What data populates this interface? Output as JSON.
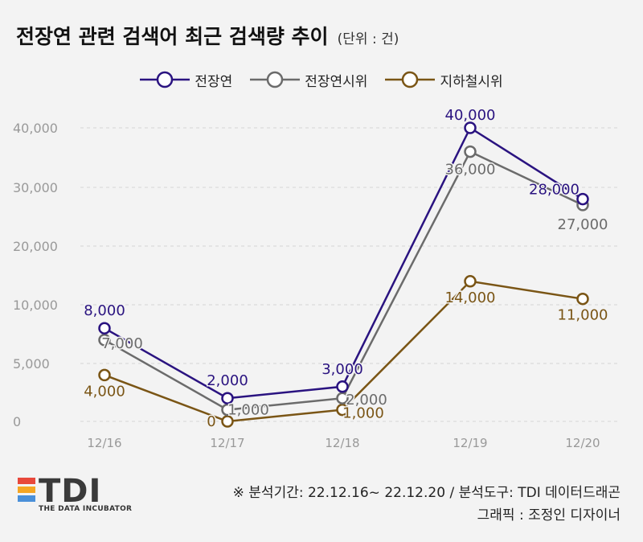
{
  "title": "전장연 관련 검색어 최근 검색량 추이",
  "unit_note": "(단위 : 건)",
  "chart_data": {
    "type": "line",
    "categories": [
      "12/16",
      "12/17",
      "12/18",
      "12/19",
      "12/20"
    ],
    "ylim": [
      0,
      40000
    ],
    "y_ticks": [
      "0",
      "5,000",
      "10,000",
      "20,000",
      "30,000",
      "40,000"
    ],
    "y_tick_values": [
      0,
      5000,
      10000,
      20000,
      30000,
      40000
    ],
    "series": [
      {
        "name": "전장연",
        "values": [
          8000,
          2000,
          3000,
          40000,
          28000
        ],
        "labels": [
          "8,000",
          "2,000",
          "3,000",
          "40,000",
          "28,000"
        ],
        "color": "#2a1380"
      },
      {
        "name": "전장연시위",
        "values": [
          7000,
          1000,
          2000,
          36000,
          27000
        ],
        "labels": [
          "7,000",
          "1,000",
          "2,000",
          "36,000",
          "27,000"
        ],
        "color": "#6b6b6b"
      },
      {
        "name": "지하철시위",
        "values": [
          4000,
          0,
          1000,
          14000,
          11000
        ],
        "labels": [
          "4,000",
          "0",
          "1,000",
          "14,000",
          "11,000"
        ],
        "color": "#7a5515"
      }
    ]
  },
  "footer": {
    "source": "※ 분석기간: 22.12.16~ 22.12.20 / 분석도구: TDI 데이터드래곤",
    "credit": "그래픽 : 조정인 디자이너"
  },
  "logo": {
    "wordmark": "TDI",
    "tagline": "THE DATA INCUBATOR",
    "colors": [
      "#e8483b",
      "#f5a623",
      "#4a90d9"
    ]
  }
}
